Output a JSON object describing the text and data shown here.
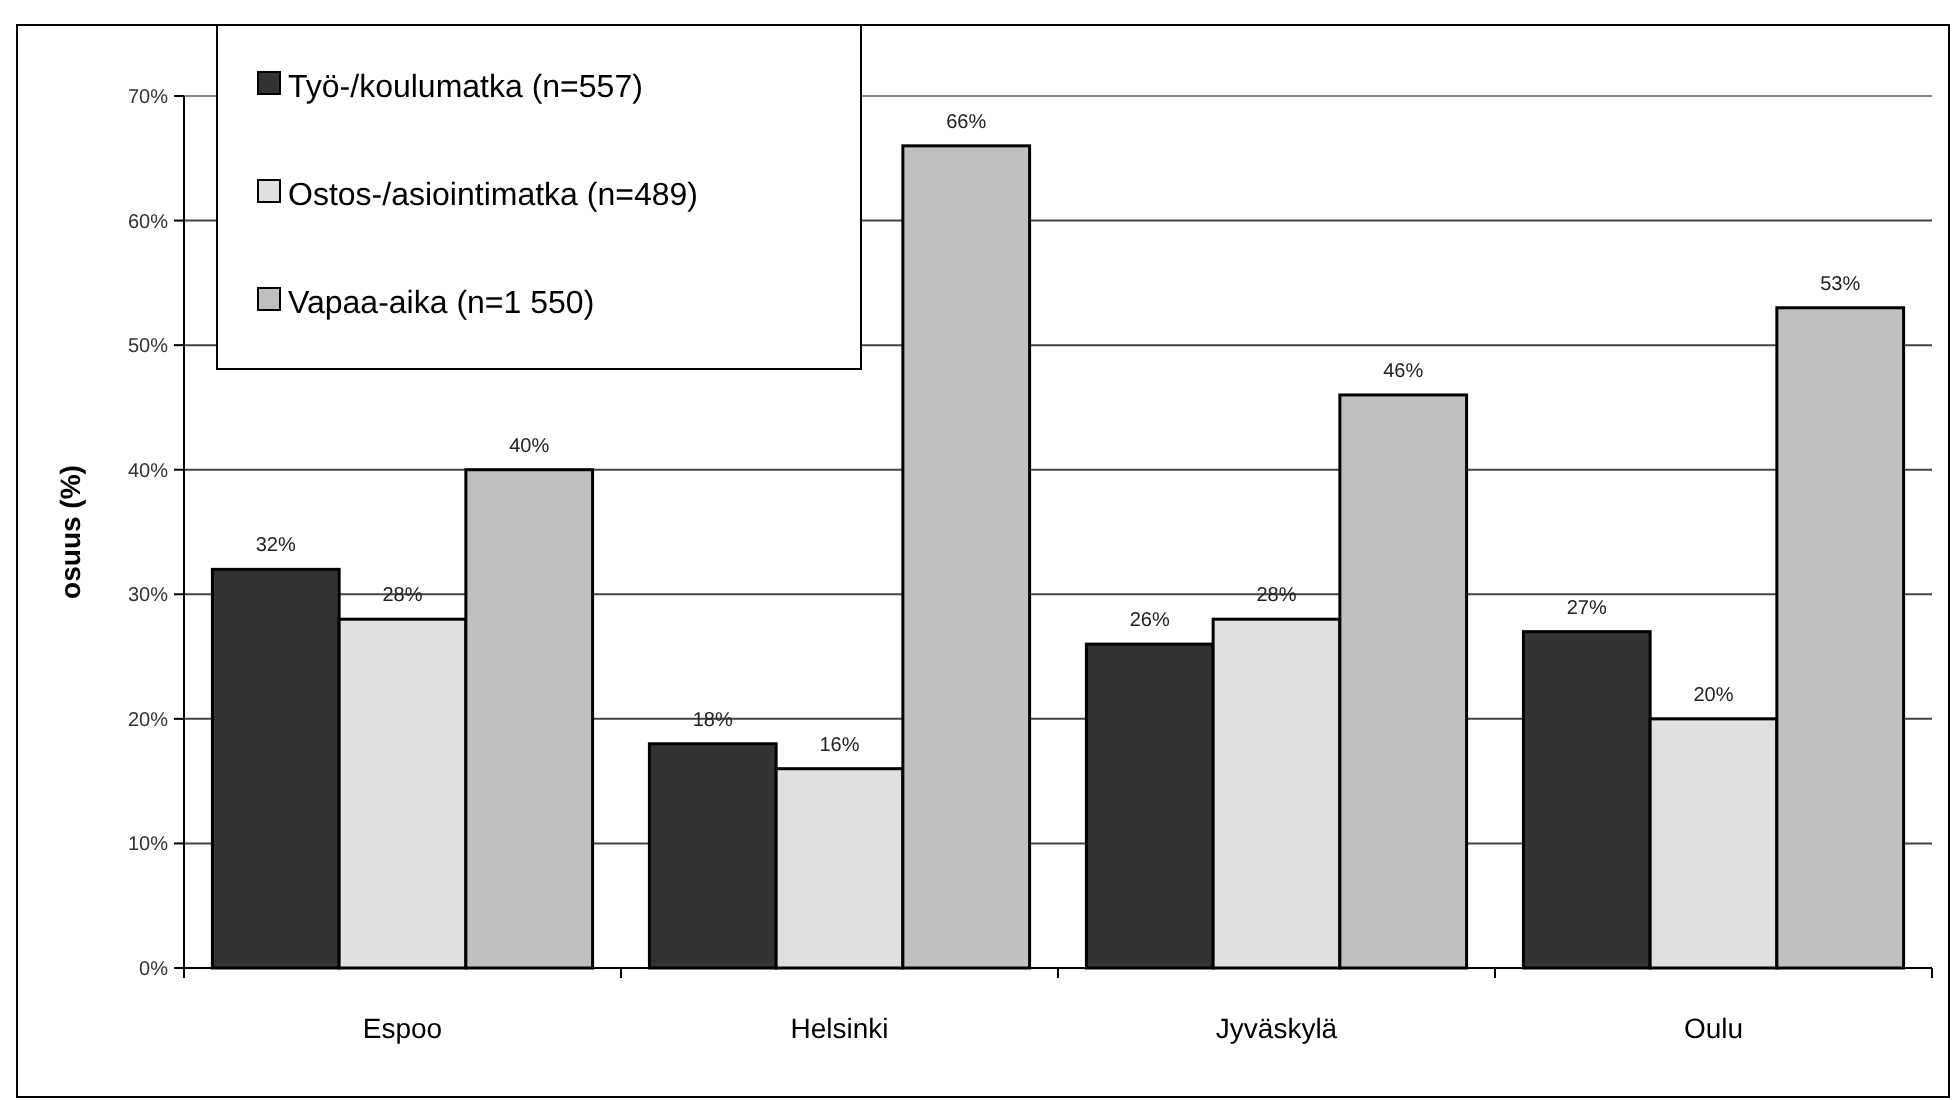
{
  "chart_data": {
    "type": "bar",
    "ylabel": "osuus (%)",
    "categories": [
      "Espoo",
      "Helsinki",
      "Jyväskylä",
      "Oulu"
    ],
    "series": [
      {
        "name": "Työ-/koulumatka (n=557)",
        "color": "#333333",
        "values": [
          32,
          18,
          26,
          27
        ],
        "value_labels": [
          "32%",
          "18%",
          "26%",
          "27%"
        ]
      },
      {
        "name": "Ostos-/asiointimatka (n=489)",
        "color": "#e0e0e0",
        "values": [
          28,
          16,
          28,
          20
        ],
        "value_labels": [
          "28%",
          "16%",
          "28%",
          "20%"
        ]
      },
      {
        "name": "Vapaa-aika (n=1 550)",
        "color": "#c0c0c0",
        "values": [
          40,
          66,
          46,
          53
        ],
        "value_labels": [
          "40%",
          "66%",
          "46%",
          "53%"
        ]
      }
    ],
    "ylim": [
      0,
      70
    ],
    "yticks": [
      {
        "value": 0,
        "label": "0%"
      },
      {
        "value": 10,
        "label": "10%"
      },
      {
        "value": 20,
        "label": "20%"
      },
      {
        "value": 30,
        "label": "30%"
      },
      {
        "value": 40,
        "label": "40%"
      },
      {
        "value": 50,
        "label": "50%"
      },
      {
        "value": 60,
        "label": "60%"
      },
      {
        "value": 70,
        "label": "70%"
      }
    ],
    "grid": "y",
    "legend": "top left"
  }
}
